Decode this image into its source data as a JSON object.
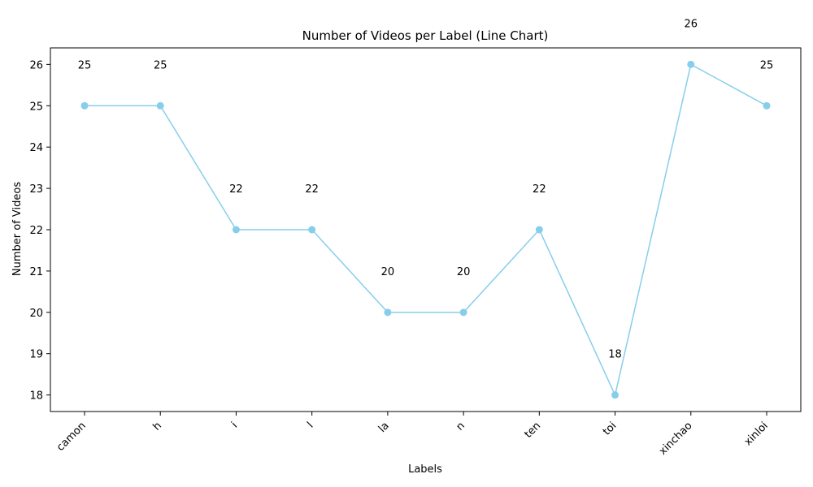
{
  "chart_data": {
    "type": "line",
    "title": "Number of Videos per Label (Line Chart)",
    "xlabel": "Labels",
    "ylabel": "Number of Videos",
    "categories": [
      "camon",
      "h",
      "i",
      "l",
      "la",
      "n",
      "ten",
      "toi",
      "xinchao",
      "xinloi"
    ],
    "series": [
      {
        "values": [
          25,
          25,
          22,
          22,
          20,
          20,
          22,
          18,
          26,
          25
        ]
      }
    ],
    "data_labels": [
      "25",
      "25",
      "22",
      "22",
      "20",
      "20",
      "22",
      "18",
      "26",
      "25"
    ],
    "y_ticks": [
      18,
      19,
      20,
      21,
      22,
      23,
      24,
      25,
      26
    ],
    "y_tick_labels": [
      "18",
      "19",
      "20",
      "21",
      "22",
      "23",
      "24",
      "25",
      "26"
    ],
    "ylim": [
      17.6,
      26.4
    ],
    "grid": false,
    "legend": "none",
    "colors": {
      "line": "#87ceeb",
      "marker": "#87ceeb",
      "axis": "#000000"
    }
  }
}
